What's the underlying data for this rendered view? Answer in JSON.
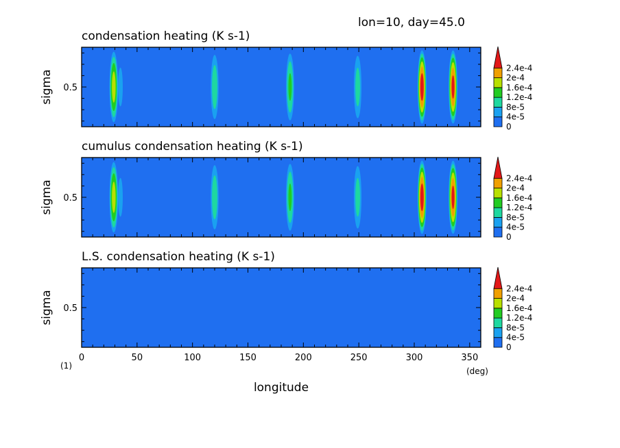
{
  "header": {
    "info": "lon=10, day=45.0"
  },
  "colorbar": {
    "levels": [
      0,
      4e-05,
      8e-05,
      0.00012,
      0.00016,
      0.0002,
      0.00024
    ],
    "labels": [
      "0",
      "4e-5",
      "8e-5",
      "1.2e-4",
      "1.6e-4",
      "2e-4",
      "2.4e-4"
    ],
    "colors": [
      "#1f6ff0",
      "#1aa1f0",
      "#1ed8a0",
      "#22cc22",
      "#b8e000",
      "#f0a000",
      "#e21818"
    ]
  },
  "footer": {
    "xlabel": "longitude",
    "xunit": "(deg)",
    "page_index": "(1)"
  },
  "chart_data": [
    {
      "type": "heatmap",
      "title": "condensation heating (K s-1)",
      "xlabel": "longitude",
      "ylabel": "sigma",
      "xlim": [
        0,
        360
      ],
      "ylim": [
        0.15,
        0.85
      ],
      "xticks": [
        0,
        50,
        100,
        150,
        200,
        250,
        300,
        350
      ],
      "yticks": [
        0.5
      ],
      "peaks": [
        {
          "lon": 29,
          "max": 0.00018
        },
        {
          "lon": 35,
          "max": 5e-05
        },
        {
          "lon": 120,
          "max": 0.00011
        },
        {
          "lon": 188,
          "max": 0.00013
        },
        {
          "lon": 226,
          "max": 4e-05
        },
        {
          "lon": 249,
          "max": 0.0001
        },
        {
          "lon": 307,
          "max": 0.00026
        },
        {
          "lon": 335,
          "max": 0.00025
        }
      ]
    },
    {
      "type": "heatmap",
      "title": "cumulus condensation heating (K s-1)",
      "xlabel": "longitude",
      "ylabel": "sigma",
      "xlim": [
        0,
        360
      ],
      "ylim": [
        0.15,
        0.85
      ],
      "xticks": [
        0,
        50,
        100,
        150,
        200,
        250,
        300,
        350
      ],
      "yticks": [
        0.5
      ],
      "peaks": [
        {
          "lon": 29,
          "max": 0.00018
        },
        {
          "lon": 35,
          "max": 5e-05
        },
        {
          "lon": 120,
          "max": 0.00011
        },
        {
          "lon": 188,
          "max": 0.00013
        },
        {
          "lon": 226,
          "max": 4e-05
        },
        {
          "lon": 249,
          "max": 0.0001
        },
        {
          "lon": 307,
          "max": 0.00026
        },
        {
          "lon": 335,
          "max": 0.00025
        }
      ]
    },
    {
      "type": "heatmap",
      "title": "L.S. condensation heating (K s-1)",
      "xlabel": "longitude",
      "ylabel": "sigma",
      "xlim": [
        0,
        360
      ],
      "ylim": [
        0.15,
        0.85
      ],
      "xticks": [
        0,
        50,
        100,
        150,
        200,
        250,
        300,
        350
      ],
      "yticks": [
        0.5
      ],
      "peaks": []
    }
  ]
}
